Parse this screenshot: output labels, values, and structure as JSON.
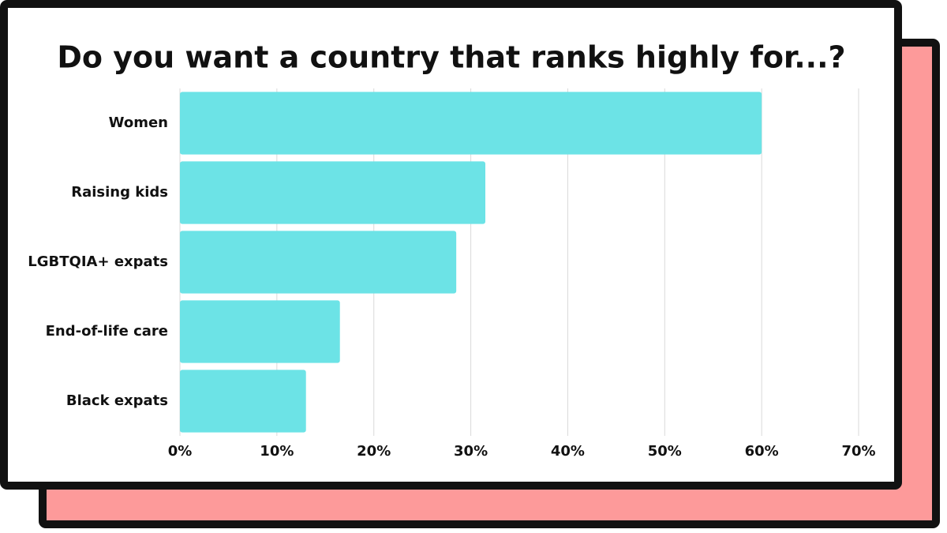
{
  "chart_data": {
    "type": "bar",
    "orientation": "horizontal",
    "title": "Do you want a country that ranks highly for...?",
    "categories": [
      "Women",
      "Raising kids",
      "LGBTQIA+ expats",
      "End-of-life care",
      "Black expats"
    ],
    "values": [
      60,
      31.5,
      28.5,
      16.5,
      13
    ],
    "color": "#6ce3e6",
    "xlim": [
      0,
      70
    ],
    "xticks": [
      {
        "value": 0,
        "label": "0%"
      },
      {
        "value": 10,
        "label": "10%"
      },
      {
        "value": 20,
        "label": "20%"
      },
      {
        "value": 30,
        "label": "30%"
      },
      {
        "value": 40,
        "label": "40%"
      },
      {
        "value": 50,
        "label": "50%"
      },
      {
        "value": 60,
        "label": "60%"
      },
      {
        "value": 70,
        "label": "70%"
      }
    ],
    "grid": true
  }
}
